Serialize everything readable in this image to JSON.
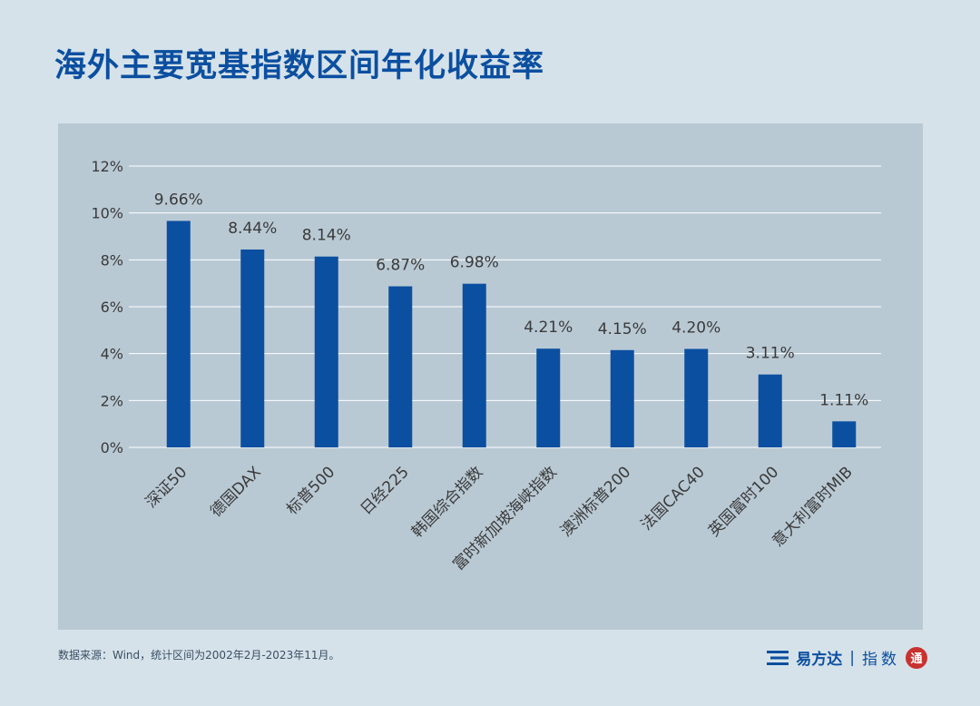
{
  "title": "海外主要宽基指数区间年化收益率",
  "footer": {
    "source_note": "数据来源：Wind，统计区间为2002年2月-2023年11月。",
    "brand_name": "易方达",
    "brand_sub": "指数",
    "brand_seal": "通"
  },
  "colors": {
    "background": "#d6e2ea",
    "panel": "#b9c9d4",
    "bar": "#0b4fa0",
    "title": "#0b4fa0",
    "grid": "#ffffff",
    "text": "#3a3a3a"
  },
  "chart_data": {
    "type": "bar",
    "categories": [
      "深证50",
      "德国DAX",
      "标普500",
      "日经225",
      "韩国综合指数",
      "富时新加坡海峡指数",
      "澳洲标普200",
      "法国CAC40",
      "英国富时100",
      "意大利富时MIB"
    ],
    "values": [
      9.66,
      8.44,
      8.14,
      6.87,
      6.98,
      4.21,
      4.15,
      4.2,
      3.11,
      1.11
    ],
    "data_labels": [
      "9.66%",
      "8.44%",
      "8.14%",
      "6.87%",
      "6.98%",
      "4.21%",
      "4.15%",
      "4.20%",
      "3.11%",
      "1.11%"
    ],
    "y_ticks": [
      0,
      2,
      4,
      6,
      8,
      10,
      12
    ],
    "y_tick_labels": [
      "0%",
      "2%",
      "4%",
      "6%",
      "8%",
      "10%",
      "12%"
    ],
    "ylim": [
      0,
      12
    ],
    "grid": true,
    "xlabel": "",
    "ylabel": ""
  }
}
